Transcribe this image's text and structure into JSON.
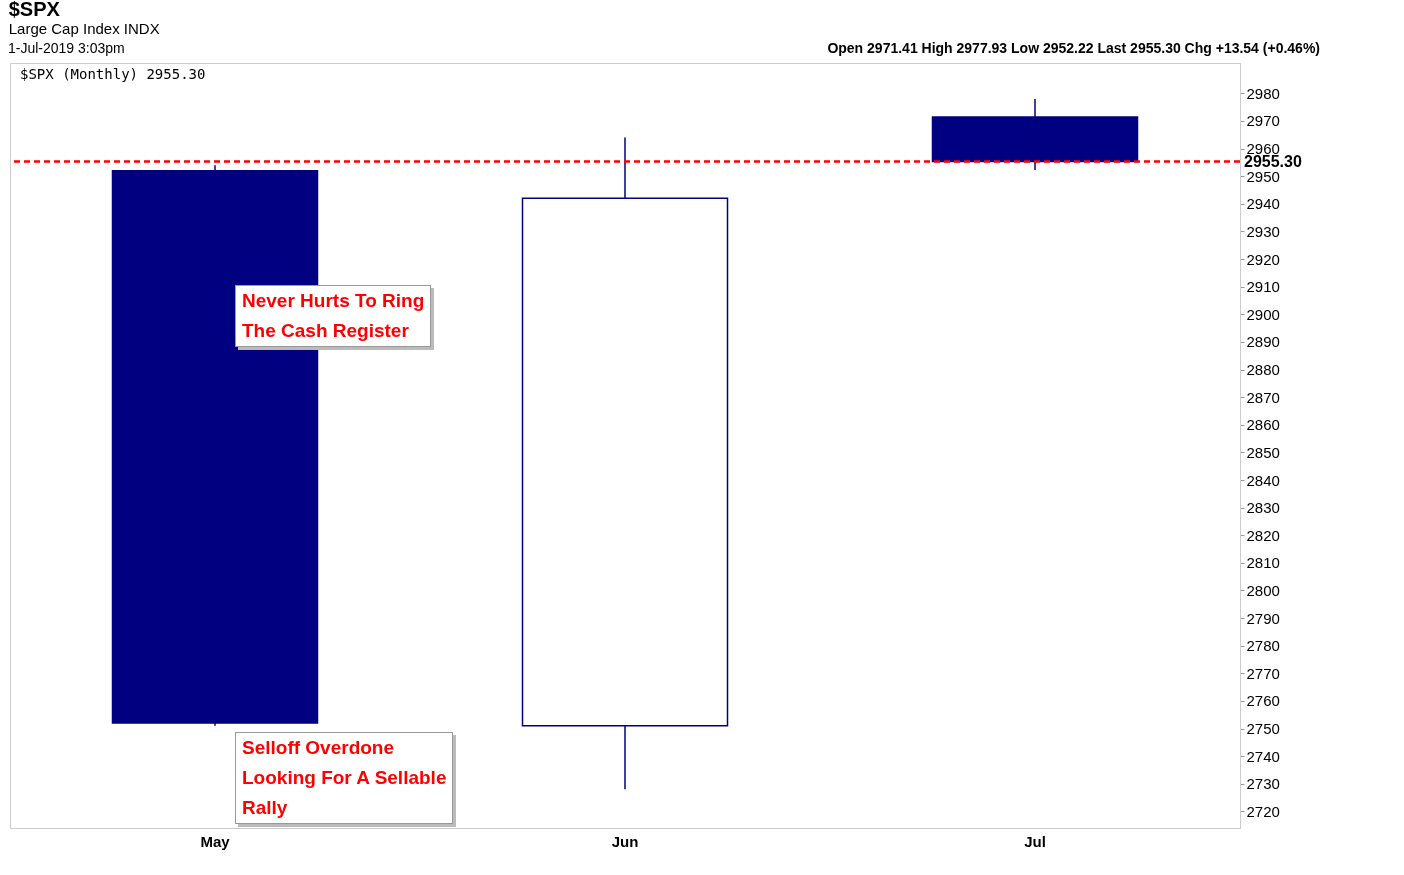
{
  "chart_data": {
    "type": "candlestick",
    "title": "$SPX",
    "subtitle": "Large Cap Index INDX",
    "categories": [
      "May",
      "Jun",
      "Jul"
    ],
    "ohlc": [
      [
        2952,
        2954,
        2751,
        2752
      ],
      [
        2751,
        2964,
        2728,
        2942
      ],
      [
        2971.41,
        2977.93,
        2952.22,
        2955.3
      ]
    ],
    "color": "#000080",
    "ylim": [
      2714,
      2991
    ],
    "yticks": [
      2720,
      2730,
      2740,
      2750,
      2760,
      2770,
      2780,
      2790,
      2800,
      2810,
      2820,
      2830,
      2840,
      2850,
      2860,
      2870,
      2880,
      2890,
      2900,
      2910,
      2920,
      2930,
      2940,
      2950,
      2960,
      2970,
      2980
    ],
    "ref_lines": [
      {
        "axis": "y",
        "value": 2955.3,
        "label": "2955.30",
        "color": "#ff0000",
        "line_style": "dashed"
      }
    ],
    "annotations": [
      "1-Jul-2019 3:03pm",
      "Open 2971.41  High 2977.93  Low 2952.22  Last 2955.30  Chg +13.54 (+0.46%)",
      "$SPX (Monthly) 2955.30",
      "Never Hurts To Ring\nThe Cash Register",
      "Selloff Overdone\nLooking For A Sellable\nRally"
    ],
    "grid": false
  }
}
